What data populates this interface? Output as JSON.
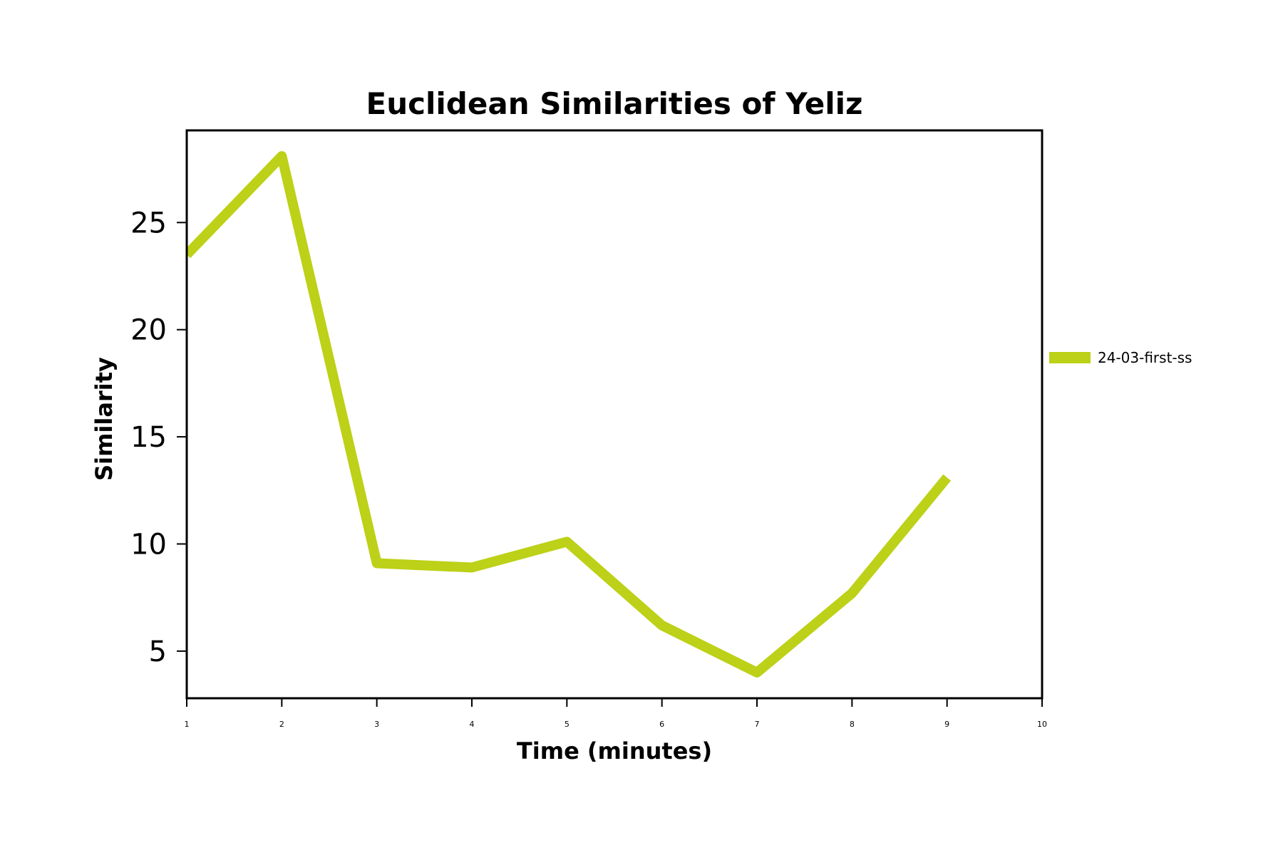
{
  "chart_data": {
    "type": "line",
    "title": "Euclidean Similarities of Yeliz",
    "xlabel": "Time (minutes)",
    "ylabel": "Similarity",
    "xlim": [
      1,
      10
    ],
    "ylim": [
      2.8,
      29.3
    ],
    "xticks": [
      1,
      2,
      3,
      4,
      5,
      6,
      7,
      8,
      9,
      10
    ],
    "yticks": [
      5,
      10,
      15,
      20,
      25
    ],
    "grid": false,
    "legend_position": "right",
    "series": [
      {
        "name": "24-03-first-ss",
        "color": "#bcd117",
        "x": [
          1,
          2,
          3,
          4,
          5,
          6,
          7,
          8,
          9
        ],
        "y": [
          23.5,
          28.1,
          9.1,
          8.9,
          10.1,
          6.2,
          4.0,
          7.7,
          13.1
        ]
      }
    ]
  }
}
